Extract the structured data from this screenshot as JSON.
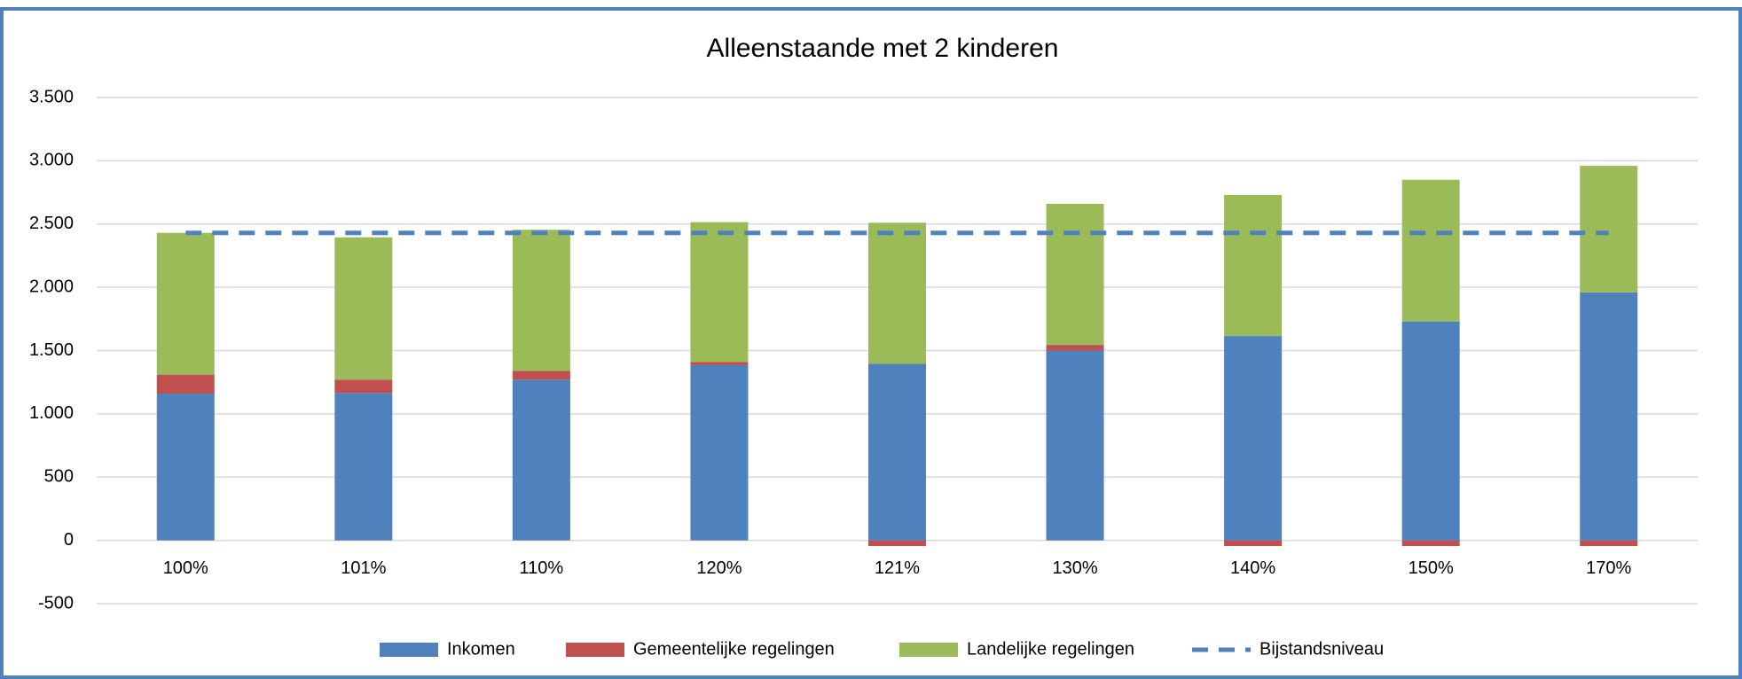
{
  "chart_data": {
    "type": "bar",
    "stacked": true,
    "title": "Alleenstaande met 2 kinderen",
    "categories": [
      "100%",
      "101%",
      "110%",
      "120%",
      "121%",
      "130%",
      "140%",
      "150%",
      "170%"
    ],
    "series": [
      {
        "name": "Inkomen",
        "color": "#4f81bd",
        "values": [
          1160,
          1165,
          1270,
          1385,
          1395,
          1500,
          1615,
          1730,
          1960
        ]
      },
      {
        "name": "Gemeentelijke regelingen",
        "color": "#c0504d",
        "values": [
          150,
          105,
          70,
          25,
          -45,
          45,
          -45,
          -45,
          -45
        ]
      },
      {
        "name": "Landelijke regelingen",
        "color": "#9bbb59",
        "values": [
          1120,
          1125,
          1115,
          1105,
          1115,
          1115,
          1115,
          1120,
          1000
        ]
      },
      {
        "name": "Bijstandsniveau",
        "color": "#4f81bd",
        "type": "line",
        "dashed": true,
        "values": [
          2430,
          2430,
          2430,
          2430,
          2430,
          2430,
          2430,
          2430,
          2430
        ]
      }
    ],
    "ylim": [
      -500,
      3500
    ],
    "yticks": [
      -500,
      0,
      500,
      {
        "value": 1000,
        "label": "1.000"
      },
      {
        "value": 1500,
        "label": "1.500"
      },
      {
        "value": 2000,
        "label": "2.000"
      },
      {
        "value": 2500,
        "label": "2.500"
      },
      {
        "value": 3000,
        "label": "3.000"
      },
      {
        "value": 3500,
        "label": "3.500"
      }
    ],
    "grid": true,
    "legend": "bottom"
  }
}
